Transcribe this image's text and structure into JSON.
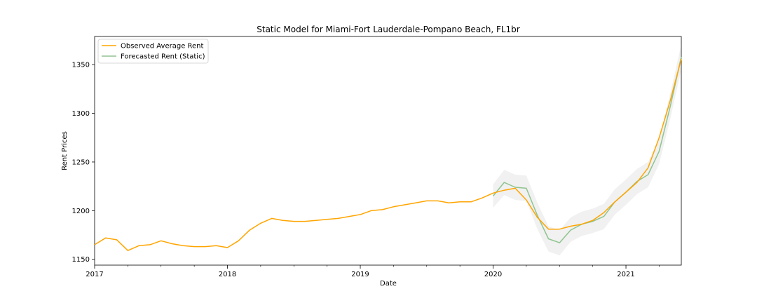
{
  "chart_data": {
    "type": "line",
    "title": "Static Model for Miami-Fort Lauderdale-Pompano Beach, FL1br",
    "xlabel": "Date",
    "ylabel": "Rent Prices",
    "xlim": [
      "2017-01",
      "2021-06"
    ],
    "ylim": [
      1144,
      1379
    ],
    "x_ticks": [
      "2017",
      "2018",
      "2019",
      "2020",
      "2021"
    ],
    "y_ticks": [
      1150,
      1200,
      1250,
      1300,
      1350
    ],
    "grid": false,
    "legend_position": "top-left",
    "series": [
      {
        "name": "Observed Average Rent",
        "color": "#ffa500",
        "x": [
          "2017-01",
          "2017-02",
          "2017-03",
          "2017-04",
          "2017-05",
          "2017-06",
          "2017-07",
          "2017-08",
          "2017-09",
          "2017-10",
          "2017-11",
          "2017-12",
          "2018-01",
          "2018-02",
          "2018-03",
          "2018-04",
          "2018-05",
          "2018-06",
          "2018-07",
          "2018-08",
          "2018-09",
          "2018-10",
          "2018-11",
          "2018-12",
          "2019-01",
          "2019-02",
          "2019-03",
          "2019-04",
          "2019-05",
          "2019-06",
          "2019-07",
          "2019-08",
          "2019-09",
          "2019-10",
          "2019-11",
          "2019-12",
          "2020-01",
          "2020-02",
          "2020-03",
          "2020-04",
          "2020-05",
          "2020-06",
          "2020-07",
          "2020-08",
          "2020-09",
          "2020-10",
          "2020-11",
          "2020-12",
          "2021-01",
          "2021-02",
          "2021-03",
          "2021-04",
          "2021-05",
          "2021-06"
        ],
        "y": [
          1165,
          1172,
          1170,
          1159,
          1164,
          1165,
          1169,
          1166,
          1164,
          1163,
          1163,
          1164,
          1162,
          1169,
          1180,
          1187,
          1192,
          1190,
          1189,
          1189,
          1190,
          1191,
          1192,
          1194,
          1196,
          1200,
          1201,
          1204,
          1206,
          1208,
          1210,
          1210,
          1208,
          1209,
          1209,
          1213,
          1218,
          1221,
          1223,
          1211,
          1193,
          1181,
          1181,
          1184,
          1186,
          1190,
          1198,
          1209,
          1219,
          1229,
          1244,
          1275,
          1313,
          1356
        ]
      },
      {
        "name": "Forecasted Rent (Static)",
        "color": "#8fc48f",
        "x": [
          "2020-01",
          "2020-02",
          "2020-03",
          "2020-04",
          "2020-05",
          "2020-06",
          "2020-07",
          "2020-08",
          "2020-09",
          "2020-10",
          "2020-11",
          "2020-12",
          "2021-01",
          "2021-02",
          "2021-03",
          "2021-04",
          "2021-05",
          "2021-06"
        ],
        "y": [
          1215,
          1229,
          1224,
          1223,
          1195,
          1171,
          1167,
          1180,
          1186,
          1189,
          1194,
          1209,
          1219,
          1230,
          1237,
          1261,
          1307,
          1358
        ],
        "ci_lower": [
          1203,
          1216,
          1211,
          1210,
          1181,
          1158,
          1154,
          1168,
          1174,
          1177,
          1181,
          1196,
          1206,
          1217,
          1224,
          1248,
          1294,
          1345
        ],
        "ci_upper": [
          1227,
          1242,
          1237,
          1236,
          1208,
          1184,
          1180,
          1193,
          1199,
          1202,
          1207,
          1222,
          1232,
          1243,
          1250,
          1274,
          1320,
          1371
        ]
      }
    ]
  }
}
